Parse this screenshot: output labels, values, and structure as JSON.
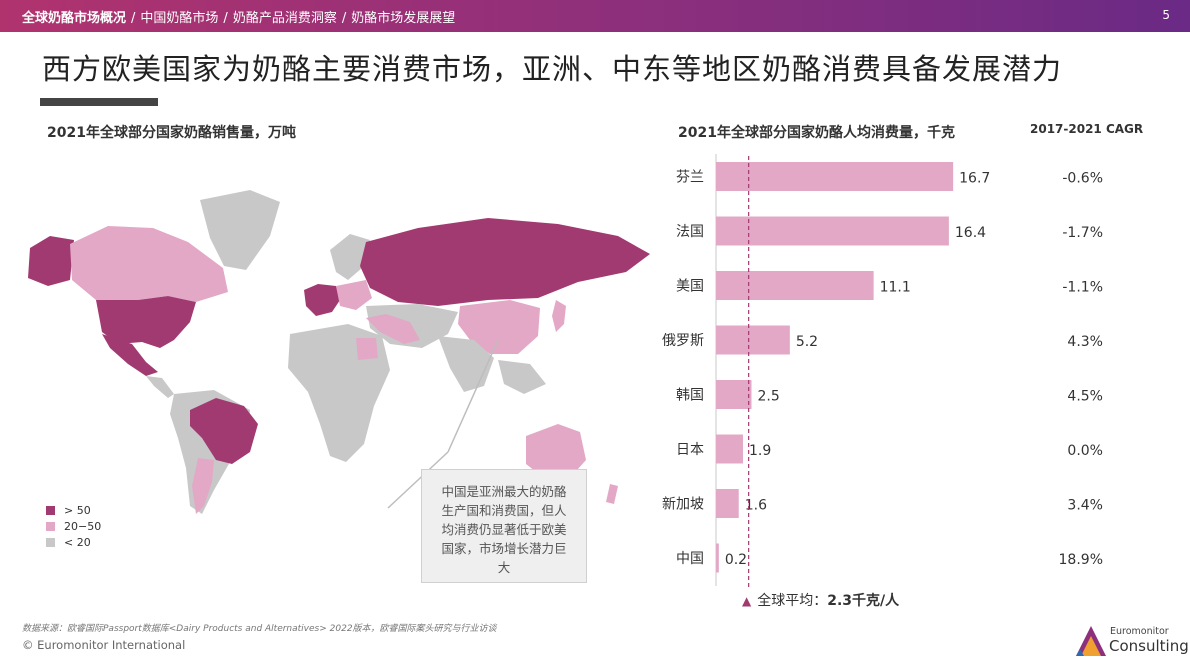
{
  "breadcrumb": {
    "items": [
      "全球奶酪市场概况",
      "中国奶酪市场",
      "奶酪产品消费洞察",
      "奶酪市场发展展望"
    ],
    "separator": "/",
    "active_index": 0
  },
  "page_number": "5",
  "title": "西方欧美国家为奶酪主要消费市场，亚洲、中东等地区奶酪消费具备发展潜力",
  "map": {
    "title": "2021年全球部分国家奶酪销售量，万吨",
    "legend": [
      {
        "label": "> 50",
        "color": "#a23a72"
      },
      {
        "label": "20−50",
        "color": "#e2a8c6"
      },
      {
        "label": "< 20",
        "color": "#c8c8c8"
      }
    ],
    "note": "中国是亚洲最大的奶酪生产国和消费国，但人均消费仍显著低于欧美国家，市场增长潜力巨大"
  },
  "chart_data": {
    "type": "bar",
    "orientation": "horizontal",
    "title": "2021年全球部分国家奶酪人均消费量，千克",
    "categories": [
      "芬兰",
      "法国",
      "美国",
      "俄罗斯",
      "韩国",
      "日本",
      "新加坡",
      "中国"
    ],
    "values": [
      16.7,
      16.4,
      11.1,
      5.2,
      2.5,
      1.9,
      1.6,
      0.2
    ],
    "value_labels": [
      "16.7",
      "16.4",
      "11.1",
      "5.2",
      "2.5",
      "1.9",
      "1.6",
      "0.2"
    ],
    "bar_color": "#e2a8c6",
    "reference_line": {
      "value": 2.3,
      "style": "dashed",
      "color": "#a23a72"
    },
    "cagr_header": "2017-2021 CAGR",
    "cagr": [
      "-0.6%",
      "-1.7%",
      "-1.1%",
      "4.3%",
      "4.5%",
      "0.0%",
      "3.4%",
      "18.9%"
    ],
    "avg_note": {
      "prefix": "全球平均：",
      "value": "2.3千克/人"
    }
  },
  "source": "数据来源：欧睿国际Passport数据库<Dairy Products and Alternatives> 2022版本，欧睿国际案头研究与行业访谈",
  "copyright": "© Euromonitor International",
  "logo": {
    "line1": "Euromonitor",
    "line2": "Consulting"
  },
  "colors": {
    "accent_dark": "#a23a72",
    "accent_light": "#e2a8c6",
    "grey": "#c8c8c8"
  }
}
